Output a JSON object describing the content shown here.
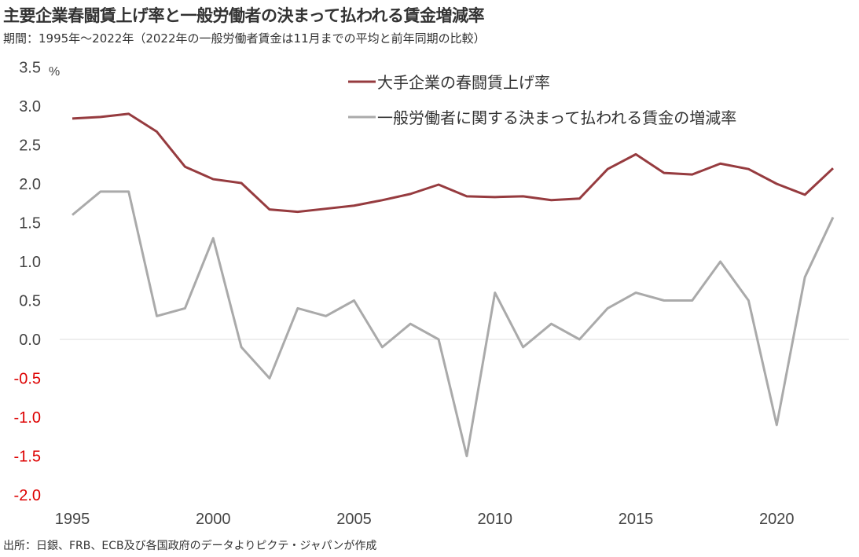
{
  "title": "主要企業春闘賃上げ率と一般労働者の決まって払われる賃金増減率",
  "subtitle": "期間：1995年～2022年（2022年の一般労働者賃金は11月までの平均と前年同期の比較）",
  "source": "出所：日銀、FRB、ECB及び各国政府のデータよりピクテ・ジャパンが作成",
  "chart_data": {
    "type": "line",
    "title": "主要企業春闘賃上げ率と一般労働者の決まって払われる賃金増減率",
    "ylabel": "%",
    "ylim": [
      -2.0,
      3.5
    ],
    "yticks": [
      "3.5",
      "3.0",
      "2.5",
      "2.0",
      "1.5",
      "1.0",
      "0.5",
      "0.0",
      "-0.5",
      "-1.0",
      "-1.5",
      "-2.0"
    ],
    "ytick_values": [
      3.5,
      3.0,
      2.5,
      2.0,
      1.5,
      1.0,
      0.5,
      0.0,
      -0.5,
      -1.0,
      -1.5,
      -2.0
    ],
    "xticks": [
      "1995",
      "2000",
      "2005",
      "2010",
      "2015",
      "2020"
    ],
    "xtick_values": [
      1995,
      2000,
      2005,
      2010,
      2015,
      2020
    ],
    "x": [
      1995,
      1996,
      1997,
      1998,
      1999,
      2000,
      2001,
      2002,
      2003,
      2004,
      2005,
      2006,
      2007,
      2008,
      2009,
      2010,
      2011,
      2012,
      2013,
      2014,
      2015,
      2016,
      2017,
      2018,
      2019,
      2020,
      2021,
      2022
    ],
    "legend_position": "top-right",
    "series": [
      {
        "name": "大手企業の春闘賃上げ率",
        "color": "#963b3f",
        "values": [
          2.84,
          2.86,
          2.9,
          2.67,
          2.22,
          2.06,
          2.01,
          1.67,
          1.64,
          1.68,
          1.72,
          1.79,
          1.87,
          1.99,
          1.84,
          1.83,
          1.84,
          1.79,
          1.81,
          2.19,
          2.38,
          2.14,
          2.12,
          2.26,
          2.19,
          2.0,
          1.86,
          2.2
        ]
      },
      {
        "name": "一般労働者に関する決まって払われる賃金の増減率",
        "color": "#aaaaaa",
        "values": [
          1.6,
          1.9,
          1.9,
          0.3,
          0.4,
          1.3,
          -0.1,
          -0.5,
          0.4,
          0.3,
          0.5,
          -0.1,
          0.2,
          0.0,
          -1.5,
          0.6,
          -0.1,
          0.2,
          0.0,
          0.4,
          0.6,
          0.5,
          0.5,
          1.0,
          0.5,
          -1.1,
          0.8,
          1.57
        ]
      }
    ]
  }
}
